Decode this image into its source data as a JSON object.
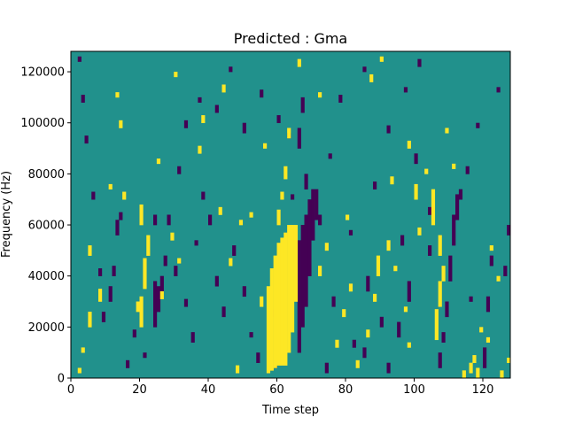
{
  "chart_data": {
    "type": "heatmap",
    "title": "Predicted : Gma",
    "xlabel": "Time step",
    "ylabel": "Frequency (Hz)",
    "xlim": [
      0,
      128
    ],
    "ylim": [
      0,
      128000
    ],
    "x_ticks": [
      0,
      20,
      40,
      60,
      80,
      100,
      120
    ],
    "y_ticks": [
      0,
      20000,
      40000,
      60000,
      80000,
      100000,
      120000
    ],
    "n_time_steps": 128,
    "n_freq_bins": 128,
    "colormap": {
      "low": "#440154",
      "mid": "#21918c",
      "high": "#fde725"
    },
    "background_value": 0,
    "cells_note": "value 1 = high (yellow), -1 = low (purple); unlisted cells = 0 (teal)",
    "high_cells": [
      [
        57,
        2,
        34
      ],
      [
        58,
        3,
        40
      ],
      [
        59,
        4,
        44
      ],
      [
        60,
        5,
        48
      ],
      [
        61,
        5,
        50
      ],
      [
        62,
        5,
        52
      ],
      [
        63,
        10,
        50
      ],
      [
        64,
        18,
        42
      ],
      [
        65,
        30,
        30
      ],
      [
        60,
        60,
        6
      ],
      [
        61,
        70,
        3
      ],
      [
        62,
        78,
        5
      ],
      [
        63,
        94,
        4
      ],
      [
        20,
        20,
        12
      ],
      [
        21,
        35,
        12
      ],
      [
        22,
        48,
        8
      ],
      [
        19,
        26,
        4
      ],
      [
        20,
        60,
        8
      ],
      [
        5,
        20,
        6
      ],
      [
        5,
        48,
        4
      ],
      [
        8,
        30,
        5
      ],
      [
        106,
        15,
        12
      ],
      [
        107,
        28,
        10
      ],
      [
        108,
        38,
        6
      ],
      [
        105,
        60,
        14
      ],
      [
        107,
        48,
        8
      ],
      [
        89,
        40,
        8
      ],
      [
        92,
        50,
        4
      ],
      [
        100,
        70,
        6
      ],
      [
        116,
        2,
        4
      ],
      [
        117,
        6,
        3
      ],
      [
        118,
        0,
        4
      ],
      [
        2,
        2,
        2
      ],
      [
        3,
        10,
        2
      ],
      [
        14,
        98,
        3
      ],
      [
        15,
        70,
        3
      ],
      [
        13,
        110,
        2
      ],
      [
        37,
        88,
        3
      ],
      [
        38,
        100,
        3
      ],
      [
        29,
        54,
        3
      ],
      [
        31,
        45,
        2
      ],
      [
        26,
        31,
        3
      ],
      [
        48,
        2,
        3
      ],
      [
        46,
        44,
        3
      ],
      [
        49,
        60,
        2
      ],
      [
        43,
        64,
        3
      ],
      [
        52,
        63,
        2
      ],
      [
        55,
        28,
        4
      ],
      [
        56,
        90,
        2
      ],
      [
        72,
        40,
        4
      ],
      [
        74,
        50,
        3
      ],
      [
        77,
        12,
        3
      ],
      [
        79,
        24,
        3
      ],
      [
        81,
        34,
        3
      ],
      [
        83,
        4,
        3
      ],
      [
        86,
        16,
        3
      ],
      [
        88,
        30,
        3
      ],
      [
        94,
        42,
        2
      ],
      [
        97,
        26,
        2
      ],
      [
        98,
        90,
        3
      ],
      [
        101,
        56,
        3
      ],
      [
        103,
        80,
        2
      ],
      [
        109,
        96,
        2
      ],
      [
        111,
        82,
        2
      ],
      [
        114,
        0,
        3
      ],
      [
        121,
        14,
        2
      ],
      [
        125,
        0,
        3
      ],
      [
        127,
        6,
        2
      ],
      [
        122,
        50,
        2
      ],
      [
        124,
        38,
        2
      ],
      [
        119,
        18,
        2
      ],
      [
        98,
        12,
        2
      ],
      [
        93,
        76,
        3
      ],
      [
        80,
        62,
        2
      ],
      [
        66,
        122,
        3
      ],
      [
        87,
        116,
        3
      ],
      [
        90,
        124,
        2
      ],
      [
        72,
        110,
        2
      ],
      [
        44,
        112,
        3
      ],
      [
        30,
        118,
        2
      ],
      [
        11,
        74,
        2
      ],
      [
        25,
        84,
        2
      ]
    ],
    "low_cells": [
      [
        66,
        10,
        44
      ],
      [
        67,
        20,
        40
      ],
      [
        68,
        28,
        36
      ],
      [
        69,
        40,
        30
      ],
      [
        70,
        54,
        20
      ],
      [
        71,
        62,
        12
      ],
      [
        68,
        74,
        6
      ],
      [
        66,
        90,
        8
      ],
      [
        67,
        104,
        6
      ],
      [
        24,
        20,
        18
      ],
      [
        25,
        26,
        10
      ],
      [
        26,
        34,
        6
      ],
      [
        27,
        44,
        4
      ],
      [
        24,
        60,
        4
      ],
      [
        11,
        30,
        6
      ],
      [
        12,
        40,
        4
      ],
      [
        13,
        56,
        6
      ],
      [
        9,
        22,
        4
      ],
      [
        8,
        40,
        3
      ],
      [
        107,
        4,
        6
      ],
      [
        108,
        14,
        4
      ],
      [
        109,
        24,
        6
      ],
      [
        110,
        38,
        10
      ],
      [
        111,
        52,
        12
      ],
      [
        112,
        62,
        10
      ],
      [
        113,
        70,
        4
      ],
      [
        120,
        4,
        8
      ],
      [
        121,
        26,
        6
      ],
      [
        122,
        44,
        4
      ],
      [
        126,
        40,
        4
      ],
      [
        127,
        56,
        4
      ],
      [
        104,
        48,
        4
      ],
      [
        100,
        84,
        4
      ],
      [
        98,
        30,
        8
      ],
      [
        96,
        52,
        4
      ],
      [
        95,
        16,
        6
      ],
      [
        92,
        2,
        4
      ],
      [
        90,
        20,
        4
      ],
      [
        86,
        34,
        6
      ],
      [
        85,
        8,
        4
      ],
      [
        82,
        12,
        3
      ],
      [
        76,
        28,
        4
      ],
      [
        74,
        2,
        4
      ],
      [
        72,
        60,
        4
      ],
      [
        60,
        12,
        4
      ],
      [
        58,
        24,
        3
      ],
      [
        54,
        6,
        4
      ],
      [
        50,
        32,
        4
      ],
      [
        47,
        48,
        4
      ],
      [
        44,
        24,
        4
      ],
      [
        42,
        36,
        4
      ],
      [
        40,
        60,
        4
      ],
      [
        38,
        70,
        3
      ],
      [
        35,
        14,
        4
      ],
      [
        33,
        28,
        3
      ],
      [
        30,
        40,
        4
      ],
      [
        28,
        60,
        4
      ],
      [
        31,
        80,
        3
      ],
      [
        33,
        98,
        3
      ],
      [
        37,
        108,
        2
      ],
      [
        42,
        104,
        3
      ],
      [
        46,
        120,
        2
      ],
      [
        50,
        96,
        4
      ],
      [
        55,
        110,
        3
      ],
      [
        60,
        100,
        3
      ],
      [
        63,
        94,
        2
      ],
      [
        75,
        86,
        2
      ],
      [
        78,
        108,
        3
      ],
      [
        85,
        120,
        2
      ],
      [
        92,
        96,
        3
      ],
      [
        97,
        112,
        2
      ],
      [
        101,
        122,
        3
      ],
      [
        104,
        64,
        3
      ],
      [
        115,
        80,
        3
      ],
      [
        118,
        98,
        2
      ],
      [
        124,
        112,
        2
      ],
      [
        3,
        108,
        3
      ],
      [
        4,
        92,
        3
      ],
      [
        6,
        70,
        3
      ],
      [
        2,
        124,
        2
      ],
      [
        16,
        4,
        3
      ],
      [
        18,
        16,
        3
      ],
      [
        21,
        8,
        2
      ],
      [
        14,
        62,
        3
      ],
      [
        116,
        30,
        2
      ],
      [
        64,
        70,
        2
      ],
      [
        59,
        4,
        2
      ],
      [
        36,
        52,
        2
      ],
      [
        52,
        16,
        2
      ],
      [
        81,
        56,
        2
      ],
      [
        88,
        74,
        3
      ]
    ]
  }
}
